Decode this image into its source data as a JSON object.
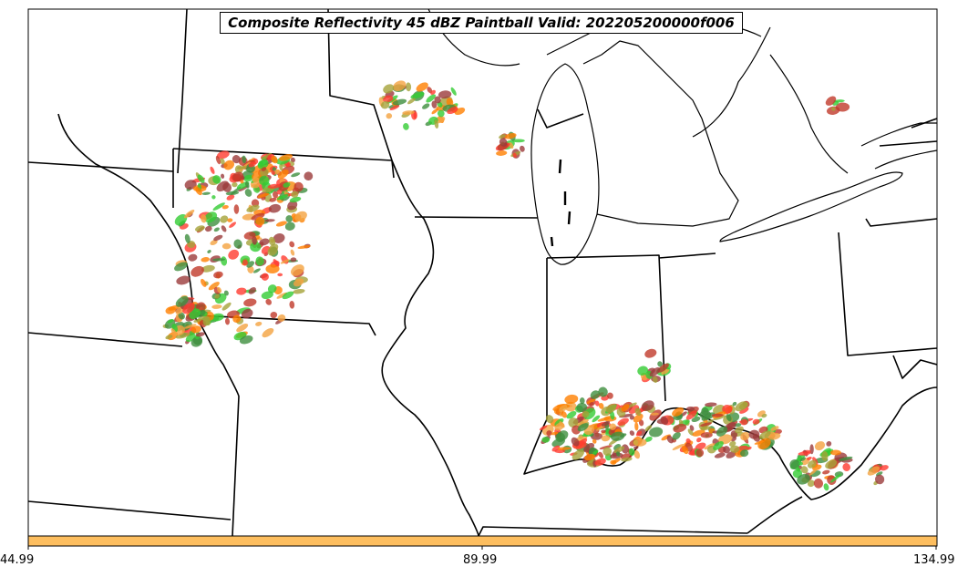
{
  "title": "Composite Reflectivity 45 dBZ Paintball Valid: 202205200000f006",
  "colorbar": {
    "color": "#fdbe5f",
    "tick_labels": [
      "44.99",
      "89.99",
      "134.99"
    ]
  },
  "member_colors": [
    "#c0392b",
    "#ff3b30",
    "#ff7f00",
    "#f4a340",
    "#9b3b3b",
    "#3f8f3f",
    "#33cc33",
    "#a5a33a"
  ],
  "map": {
    "region": "Upper Midwest / Ohio Valley",
    "storm_clusters": [
      "Iowa-Nebraska-Missouri cluster",
      "Northern Wisconsin / Upper Michigan band",
      "Central Michigan cells",
      "Indiana-Kentucky-Ohio line",
      "Eastern Kentucky / West Virginia cluster"
    ]
  }
}
